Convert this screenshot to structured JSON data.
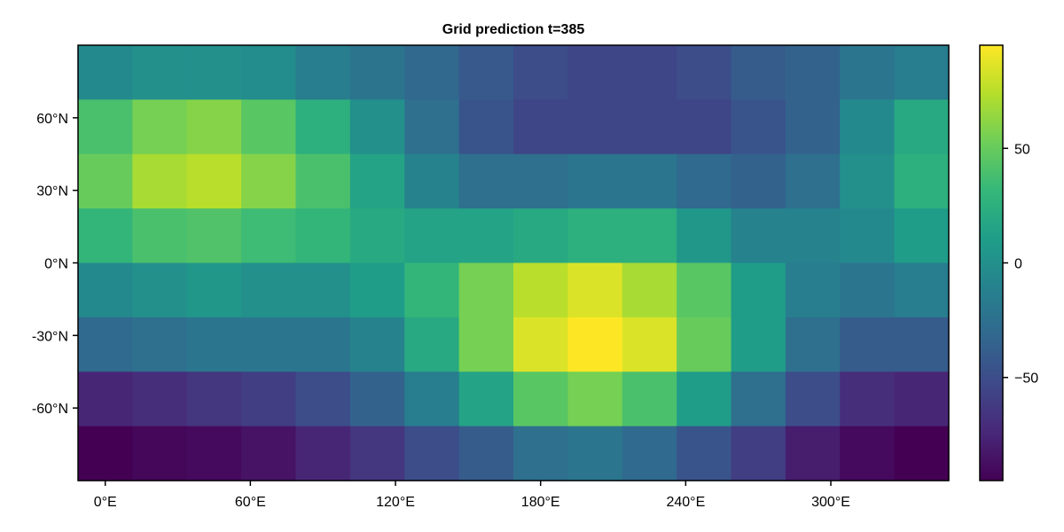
{
  "chart_data": {
    "type": "heatmap",
    "title": "Grid prediction t=385",
    "xlabel": "",
    "ylabel": "",
    "x_ticks": [
      0,
      60,
      120,
      180,
      240,
      300
    ],
    "x_tick_labels": [
      "0°E",
      "60°E",
      "120°E",
      "180°E",
      "240°E",
      "300°E"
    ],
    "y_ticks": [
      60,
      30,
      0,
      -30,
      -60
    ],
    "y_tick_labels": [
      "60°N",
      "30°N",
      "0°N",
      "-30°N",
      "-60°N"
    ],
    "xlim": [
      -11.25,
      348.75
    ],
    "ylim": [
      -90,
      90
    ],
    "x_centers": [
      0,
      22.5,
      45,
      67.5,
      90,
      112.5,
      135,
      157.5,
      180,
      202.5,
      225,
      247.5,
      270,
      292.5,
      315,
      337.5
    ],
    "y_rows_top_to_bottom": [
      78.75,
      56.25,
      33.75,
      11.25,
      -11.25,
      -33.75,
      -56.25,
      -78.75
    ],
    "values": [
      [
        -5,
        0,
        0,
        -3,
        -15,
        -22,
        -32,
        -42,
        -50,
        -55,
        -55,
        -50,
        -40,
        -35,
        -20,
        -15
      ],
      [
        40,
        55,
        60,
        45,
        25,
        0,
        -25,
        -45,
        -55,
        -55,
        -55,
        -55,
        -45,
        -35,
        -5,
        20
      ],
      [
        50,
        70,
        75,
        60,
        40,
        15,
        -10,
        -25,
        -25,
        -20,
        -20,
        -30,
        -35,
        -25,
        0,
        25
      ],
      [
        30,
        40,
        42,
        35,
        30,
        20,
        15,
        15,
        20,
        25,
        25,
        5,
        -10,
        -10,
        -5,
        10
      ],
      [
        -5,
        0,
        5,
        0,
        0,
        10,
        30,
        55,
        75,
        85,
        70,
        45,
        10,
        -15,
        -20,
        -15
      ],
      [
        -30,
        -25,
        -20,
        -20,
        -20,
        -10,
        20,
        55,
        85,
        95,
        85,
        50,
        10,
        -25,
        -40,
        -40
      ],
      [
        -75,
        -70,
        -65,
        -60,
        -50,
        -35,
        -15,
        15,
        45,
        55,
        40,
        10,
        -25,
        -50,
        -70,
        -75
      ],
      [
        -95,
        -92,
        -90,
        -85,
        -75,
        -65,
        -50,
        -40,
        -25,
        -20,
        -30,
        -45,
        -60,
        -80,
        -90,
        -95
      ]
    ],
    "colorbar": {
      "min": -95,
      "max": 95,
      "ticks": [
        50,
        0,
        -50
      ],
      "tick_labels": [
        "50",
        "0",
        "−50"
      ],
      "colormap": "viridis"
    },
    "grid": false,
    "legend": "colorbar-right"
  }
}
